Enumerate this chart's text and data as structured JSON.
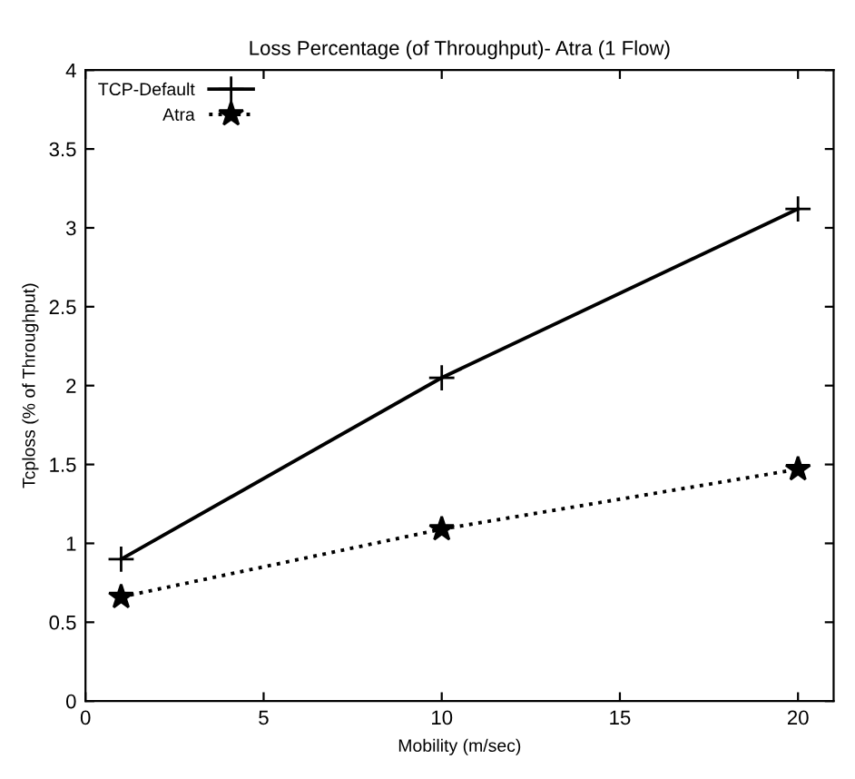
{
  "chart_data": {
    "type": "line",
    "title": "Loss Percentage (of Throughput)- Atra (1 Flow)",
    "xlabel": "Mobility (m/sec)",
    "ylabel": "Tcploss (% of Throughput)",
    "x": [
      1,
      10,
      20
    ],
    "series": [
      {
        "name": "TCP-Default",
        "color": "#000000",
        "values": [
          0.9,
          2.05,
          3.12
        ],
        "marker": "cross",
        "line_style": "solid"
      },
      {
        "name": "Atra",
        "color": "#000000",
        "values": [
          0.66,
          1.09,
          1.47
        ],
        "marker": "star",
        "line_style": "dotted"
      }
    ],
    "xlim": [
      0,
      21
    ],
    "xticks": [
      0,
      5,
      10,
      15,
      20
    ],
    "ylim": [
      0,
      4
    ],
    "yticks": [
      0,
      0.5,
      1,
      1.5,
      2,
      2.5,
      3,
      3.5,
      4
    ],
    "legend": "top left",
    "grid": false
  }
}
